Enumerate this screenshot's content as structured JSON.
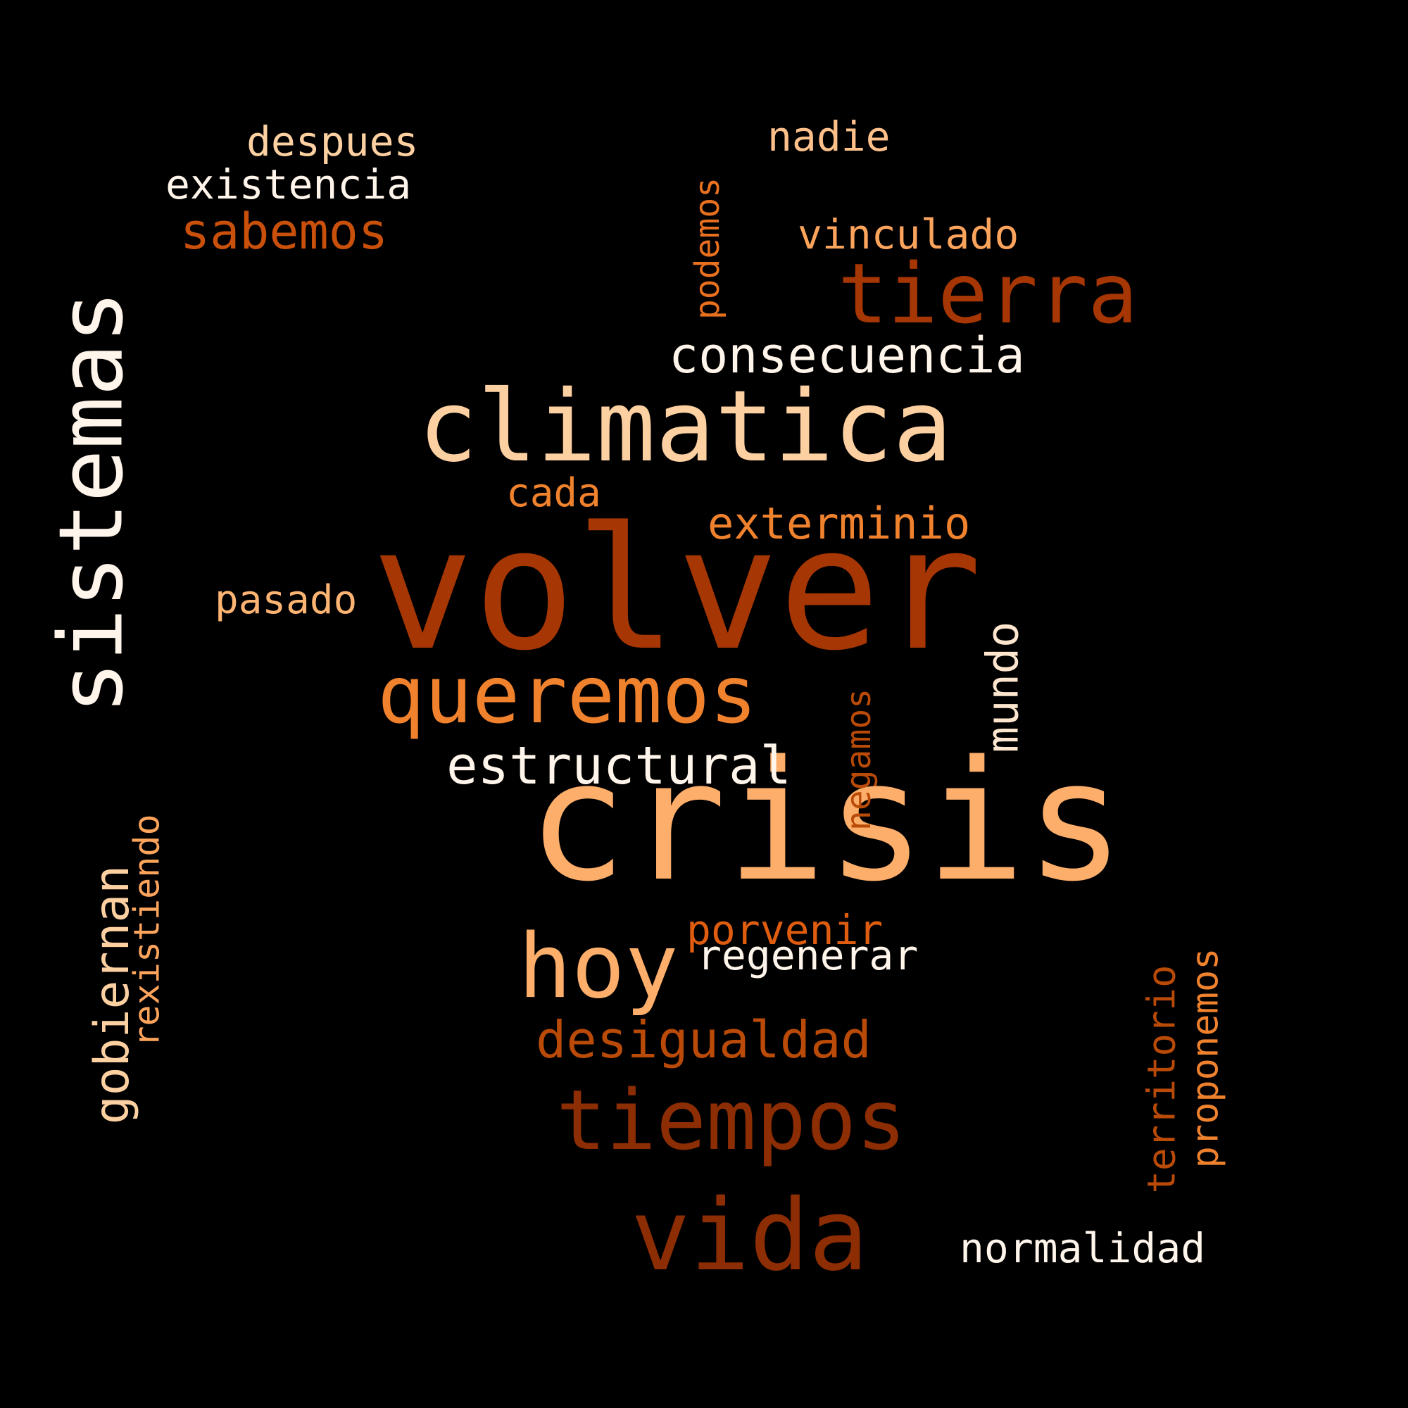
{
  "words": [
    {
      "text": "crisis",
      "color": "#fdae6b"
    },
    {
      "text": "volver",
      "color": "#a63603"
    },
    {
      "text": "climatica",
      "color": "#fdd0a2"
    },
    {
      "text": "sistemas",
      "color": "#fff5eb"
    },
    {
      "text": "tierra",
      "color": "#a63603"
    },
    {
      "text": "queremos",
      "color": "#f0822e"
    },
    {
      "text": "hoy",
      "color": "#fdae6b"
    },
    {
      "text": "tiempos",
      "color": "#8c2d04"
    },
    {
      "text": "vida",
      "color": "#8c2d04"
    },
    {
      "text": "consecuencia",
      "color": "#fff5eb"
    },
    {
      "text": "estructural",
      "color": "#fff5eb"
    },
    {
      "text": "mundo",
      "color": "#fee6ce"
    },
    {
      "text": "desigualdad",
      "color": "#b94a07"
    },
    {
      "text": "exterminio",
      "color": "#f0822e"
    },
    {
      "text": "sabemos",
      "color": "#c9500b"
    },
    {
      "text": "gobiernan",
      "color": "#fdd0a2"
    },
    {
      "text": "existencia",
      "color": "#fff5eb"
    },
    {
      "text": "despues",
      "color": "#fdd0a2"
    },
    {
      "text": "nadie",
      "color": "#fdc08a"
    },
    {
      "text": "vinculado",
      "color": "#fda45c"
    },
    {
      "text": "podemos",
      "color": "#e8701f"
    },
    {
      "text": "cada",
      "color": "#f0822e"
    },
    {
      "text": "pasado",
      "color": "#fdb472"
    },
    {
      "text": "negamos",
      "color": "#b94a07"
    },
    {
      "text": "porvenir",
      "color": "#e05d10"
    },
    {
      "text": "regenerar",
      "color": "#fff5eb"
    },
    {
      "text": "rexistiendo",
      "color": "#fda45c"
    },
    {
      "text": "territorio",
      "color": "#b94a07"
    },
    {
      "text": "proponemos",
      "color": "#f0822e"
    },
    {
      "text": "normalidad",
      "color": "#fff5eb"
    }
  ]
}
